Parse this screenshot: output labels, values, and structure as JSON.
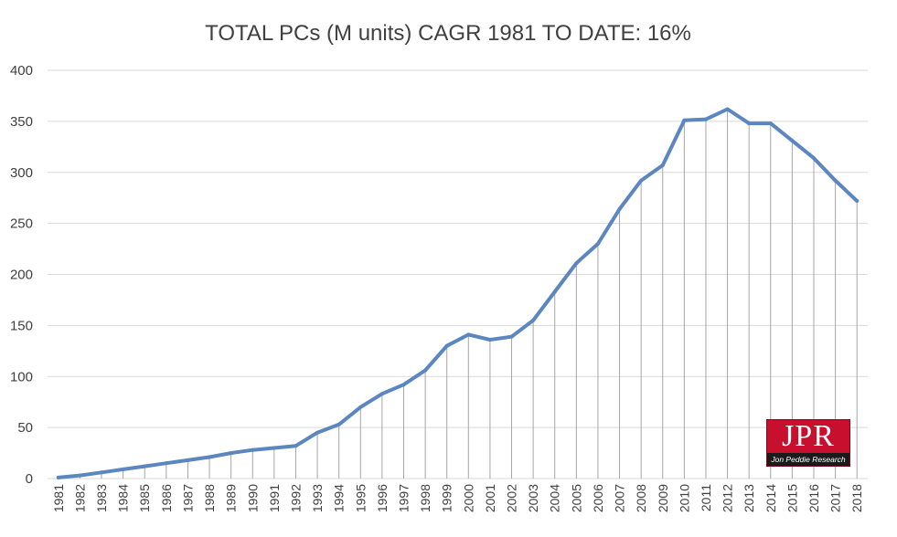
{
  "chart_data": {
    "type": "line",
    "title": "TOTAL PCs (M units) CAGR 1981 TO DATE: 16%",
    "xlabel": "",
    "ylabel": "",
    "ylim": [
      0,
      400
    ],
    "yticks": [
      0,
      50,
      100,
      150,
      200,
      250,
      300,
      350,
      400
    ],
    "grid": true,
    "drop_lines": true,
    "categories": [
      "1981",
      "1982",
      "1983",
      "1984",
      "1985",
      "1986",
      "1987",
      "1988",
      "1989",
      "1990",
      "1991",
      "1992",
      "1993",
      "1994",
      "1995",
      "1996",
      "1997",
      "1998",
      "1999",
      "2000",
      "2001",
      "2002",
      "2003",
      "2004",
      "2005",
      "2006",
      "2007",
      "2008",
      "2009",
      "2010",
      "2011",
      "2012",
      "2013",
      "2014",
      "2015",
      "2016",
      "2017",
      "2018"
    ],
    "series": [
      {
        "name": "Total PCs (M units)",
        "color": "#5b86c0",
        "values": [
          1,
          3,
          6,
          9,
          12,
          15,
          18,
          21,
          25,
          28,
          30,
          32,
          45,
          53,
          70,
          83,
          92,
          106,
          130,
          141,
          136,
          139,
          155,
          183,
          211,
          230,
          264,
          292,
          307,
          351,
          352,
          362,
          348,
          348,
          331,
          314,
          292,
          272
        ]
      }
    ]
  },
  "logo": {
    "mark": "JPR",
    "subtitle": "Jon Peddie Research"
  }
}
